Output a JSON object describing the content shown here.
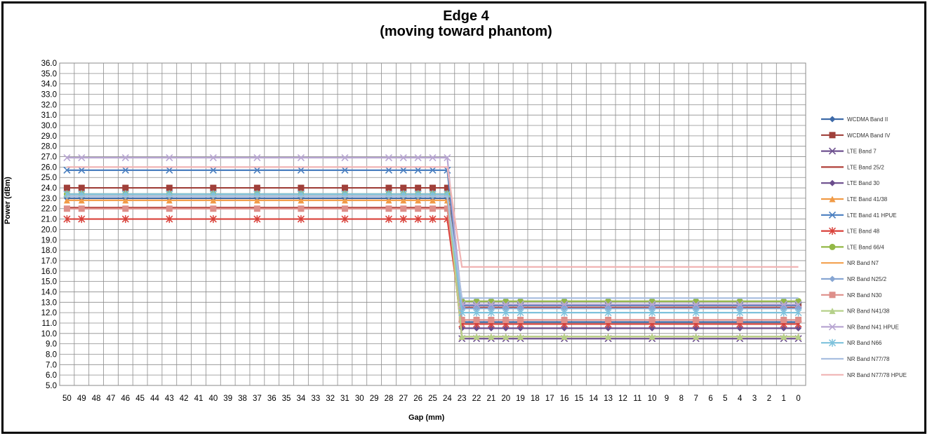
{
  "chart_data": {
    "type": "line",
    "title_line1": "Edge 4",
    "title_line2": "(moving toward phantom)",
    "xlabel": "Gap (mm)",
    "ylabel": "Power (dBm)",
    "x_categories": [
      50,
      49,
      48,
      47,
      46,
      45,
      44,
      43,
      42,
      41,
      40,
      39,
      38,
      37,
      36,
      35,
      34,
      33,
      32,
      31,
      30,
      29,
      28,
      27,
      26,
      25,
      24,
      23,
      22,
      21,
      20,
      19,
      18,
      17,
      16,
      15,
      14,
      13,
      12,
      11,
      10,
      9,
      8,
      7,
      6,
      5,
      4,
      3,
      2,
      1,
      0
    ],
    "ylim": [
      5.0,
      36.0
    ],
    "ytick_step": 1.0,
    "grid": true,
    "legend_position": "right",
    "x_markers": [
      50,
      49,
      46,
      43,
      40,
      37,
      34,
      31,
      28,
      27,
      26,
      25,
      24,
      23,
      22,
      21,
      20,
      19,
      16,
      13,
      10,
      7,
      4,
      1,
      0
    ],
    "series": [
      {
        "name": "WCDMA Band II",
        "color": "#3d6aa8",
        "marker": "diamond",
        "values": [
          {
            "to": 24,
            "y": 23.0
          },
          {
            "from": 23,
            "y": 11.1
          }
        ]
      },
      {
        "name": "WCDMA Band IV",
        "color": "#a0403a",
        "marker": "square",
        "values": [
          {
            "to": 24,
            "y": 24.0
          },
          {
            "from": 23,
            "y": 12.7
          }
        ]
      },
      {
        "name": "LTE Band 7",
        "color": "#6f5290",
        "marker": "x",
        "values": [
          {
            "to": 24,
            "y": 23.4
          },
          {
            "from": 23,
            "y": 9.5
          }
        ]
      },
      {
        "name": "LTE Band 25/2",
        "color": "#b0403a",
        "marker": "line",
        "values": [
          {
            "to": 24,
            "y": 22.1
          },
          {
            "from": 23,
            "y": 12.5
          }
        ]
      },
      {
        "name": "LTE Band 30",
        "color": "#6a4c8c",
        "marker": "diamond",
        "values": [
          {
            "to": 24,
            "y": 23.2
          },
          {
            "from": 23,
            "y": 10.5
          }
        ]
      },
      {
        "name": "LTE Band 41/38",
        "color": "#f09a46",
        "marker": "triangle",
        "values": [
          {
            "to": 24,
            "y": 22.8
          },
          {
            "from": 23,
            "y": 9.7
          }
        ]
      },
      {
        "name": "LTE Band 41 HPUE",
        "color": "#4a7fc0",
        "marker": "x",
        "values": [
          {
            "to": 24,
            "y": 25.7
          },
          {
            "from": 23,
            "y": 12.7
          }
        ]
      },
      {
        "name": "LTE Band 48",
        "color": "#d9413a",
        "marker": "star",
        "values": [
          {
            "to": 24,
            "y": 21.0
          },
          {
            "from": 23,
            "y": 10.9
          }
        ]
      },
      {
        "name": "LTE Band 66/4",
        "color": "#93b846",
        "marker": "circle",
        "values": [
          {
            "to": 24,
            "y": 23.4
          },
          {
            "from": 23,
            "y": 13.1
          }
        ]
      },
      {
        "name": "NR Band N7",
        "color": "#f3a04e",
        "marker": "line",
        "values": [
          {
            "to": 24,
            "y": 22.8
          },
          {
            "from": 23,
            "y": 9.7
          }
        ]
      },
      {
        "name": "NR Band N25/2",
        "color": "#87a6d3",
        "marker": "diamond",
        "values": [
          {
            "to": 24,
            "y": 23.2
          },
          {
            "from": 23,
            "y": 12.4
          }
        ]
      },
      {
        "name": "NR Band N30",
        "color": "#de8f8a",
        "marker": "square",
        "values": [
          {
            "to": 24,
            "y": 22.0
          },
          {
            "from": 23,
            "y": 11.3
          }
        ]
      },
      {
        "name": "NR Band N41/38",
        "color": "#b5d08a",
        "marker": "triangle",
        "values": [
          {
            "to": 24,
            "y": 23.4
          },
          {
            "from": 23,
            "y": 9.7
          }
        ]
      },
      {
        "name": "NR Band N41 HPUE",
        "color": "#b8a6d2",
        "marker": "x",
        "values": [
          {
            "to": 24,
            "y": 26.9
          },
          {
            "from": 23,
            "y": 12.8
          }
        ]
      },
      {
        "name": "NR Band N66",
        "color": "#7ec2dc",
        "marker": "star",
        "values": [
          {
            "to": 24,
            "y": 23.4
          },
          {
            "from": 23,
            "y": 12.0
          }
        ]
      },
      {
        "name": "NR Band N77/78",
        "color": "#a9bfe0",
        "marker": "line",
        "values": [
          {
            "to": 24,
            "y": 23.2
          },
          {
            "from": 23,
            "y": 13.4
          }
        ]
      },
      {
        "name": "NR Band N77/78 HPUE",
        "color": "#f0b4b4",
        "marker": "line",
        "values": [
          {
            "to": 24,
            "y": 26.0
          },
          {
            "from": 23,
            "y": 16.4
          }
        ]
      }
    ]
  }
}
